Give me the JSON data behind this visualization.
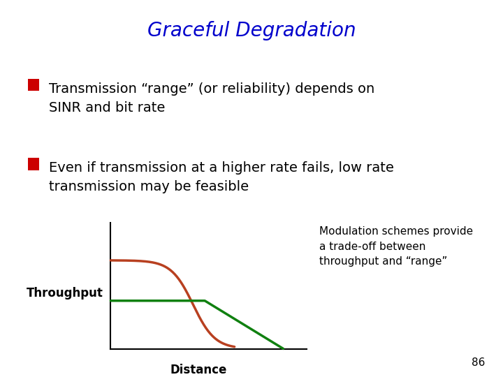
{
  "title": "Graceful Degradation",
  "title_color": "#0000CC",
  "title_fontsize": 20,
  "background_color": "#FFFFFF",
  "bullet_color": "#CC0000",
  "bullet1_text": "Transmission “range” (or reliability) depends on\nSINR and bit rate",
  "bullet2_text": "Even if transmission at a higher rate fails, low rate\ntransmission may be feasible",
  "bullet_fontsize": 14,
  "throughput_label": "Throughput",
  "distance_label": "Distance",
  "annotation_text": "Modulation schemes provide\na trade-off between\nthroughput and “range”",
  "annotation_fontsize": 11,
  "page_number": "86",
  "curve_high_color": "#B84020",
  "curve_low_color": "#108010",
  "page_number_fontsize": 11
}
